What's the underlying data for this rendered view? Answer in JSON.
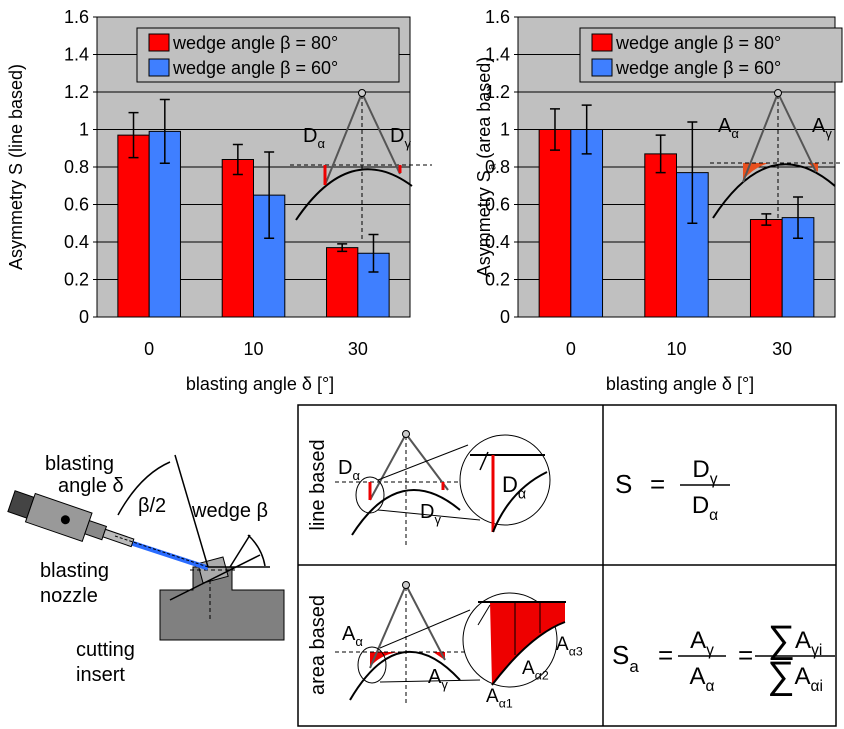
{
  "chart_data": [
    {
      "type": "bar",
      "ylabel": "Asymmetry S (line based)",
      "xlabel": "blasting angle δ [°]",
      "categories": [
        "0",
        "10",
        "30"
      ],
      "series": [
        {
          "name": "wedge angle β = 80°",
          "color": "#ff0000",
          "values": [
            0.97,
            0.84,
            0.37
          ],
          "errors": [
            0.12,
            0.08,
            0.02
          ]
        },
        {
          "name": "wedge angle β = 60°",
          "color": "#3f7fff",
          "values": [
            0.99,
            0.65,
            0.34
          ],
          "errors": [
            0.17,
            0.23,
            0.1
          ]
        }
      ],
      "ylim": [
        0,
        1.6
      ],
      "yticks": [
        0,
        0.2,
        0.4,
        0.6,
        0.8,
        1,
        1.2,
        1.4,
        1.6
      ],
      "grid": true,
      "annotations": [
        {
          "base": "D",
          "sub": "α"
        },
        {
          "base": "D",
          "sub": "γ"
        }
      ]
    },
    {
      "type": "bar",
      "ylabel": {
        "base": "Asymmetry  S",
        "sub": "a",
        "rest": " (area based)"
      },
      "xlabel": "blasting angle  δ [°]",
      "categories": [
        "0",
        "10",
        "30"
      ],
      "series": [
        {
          "name": "wedge angle β = 80°",
          "color": "#ff0000",
          "values": [
            1.0,
            0.87,
            0.52
          ],
          "errors": [
            0.11,
            0.1,
            0.03
          ]
        },
        {
          "name": "wedge angle β = 60°",
          "color": "#3f7fff",
          "values": [
            1.0,
            0.77,
            0.53
          ],
          "errors": [
            0.13,
            0.27,
            0.11
          ]
        }
      ],
      "ylim": [
        0,
        1.6
      ],
      "yticks": [
        0,
        0.2,
        0.4,
        0.6,
        0.8,
        1,
        1.2,
        1.4,
        1.6
      ],
      "grid": true,
      "annotations": [
        {
          "base": "A",
          "sub": "α"
        },
        {
          "base": "A",
          "sub": "γ"
        }
      ]
    }
  ],
  "diagram": {
    "blasting_angle": [
      "blasting",
      "angle δ"
    ],
    "half_wedge": "β/2",
    "wedge": "wedge β",
    "nozzle": [
      "blasting",
      "nozzle"
    ],
    "insert": [
      "cutting",
      "insert"
    ],
    "line_row": {
      "label": "line based",
      "marks": [
        {
          "base": "D",
          "sub": "α"
        },
        {
          "base": "D",
          "sub": "γ"
        }
      ],
      "zoom": [
        {
          "base": "D",
          "sub": "α"
        }
      ],
      "formula": {
        "lhs": "S",
        "eq": "=",
        "num": {
          "base": "D",
          "sub": "γ"
        },
        "den": {
          "base": "D",
          "sub": "α"
        }
      }
    },
    "area_row": {
      "label": "area based",
      "marks": [
        {
          "base": "A",
          "sub": "α"
        },
        {
          "base": "A",
          "sub": "γ"
        }
      ],
      "zoom": [
        {
          "base": "A",
          "sub": "α1"
        },
        {
          "base": "A",
          "sub": "α2"
        },
        {
          "base": "A",
          "sub": "α3"
        }
      ],
      "formula": {
        "lhs": {
          "base": "S",
          "sub": "a"
        },
        "eq": "=",
        "num": {
          "base": "A",
          "sub": "γ"
        },
        "den": {
          "base": "A",
          "sub": "α"
        },
        "eq2": "=",
        "num2": {
          "sym": "∑",
          "base": "A",
          "sub": "γi"
        },
        "den2": {
          "sym": "∑",
          "base": "A",
          "sub": "αi"
        }
      }
    }
  }
}
